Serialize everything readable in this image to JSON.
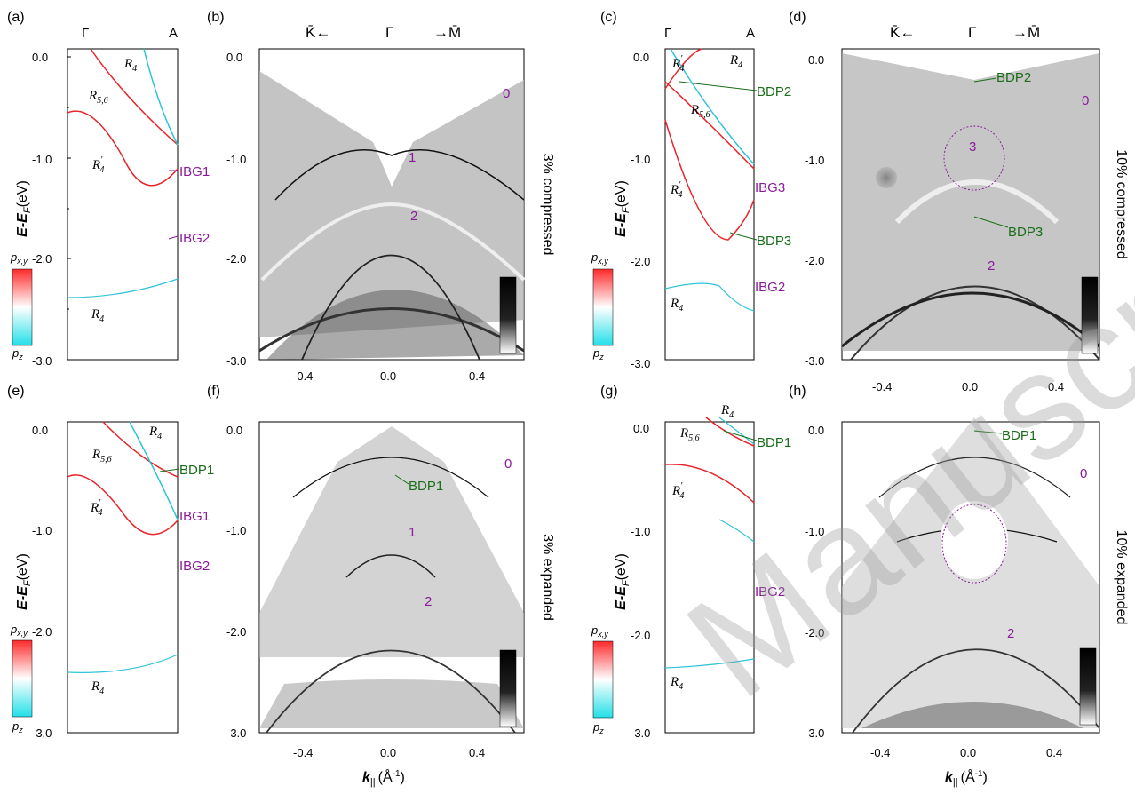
{
  "figure": {
    "panel_labels": [
      "(a)",
      "(b)",
      "(c)",
      "(d)",
      "(e)",
      "(f)",
      "(g)",
      "(h)"
    ],
    "bulk_axis": {
      "top_left": "Γ",
      "top_right": "A",
      "ylabel_main": "E-E",
      "ylabel_sub": "F",
      "ylabel_unit": "(eV)",
      "yticks": [
        "0.0",
        "-1.0",
        "-2.0",
        "-3.0"
      ]
    },
    "slab_axis": {
      "top_left": "K̄←",
      "top_center": "Γ̄",
      "top_right": "→M̄",
      "xticks": [
        "-0.4",
        "0.0",
        "0.4"
      ],
      "yticks": [
        "0.0",
        "-1.0",
        "-2.0",
        "-3.0"
      ],
      "xlabel_main": "k",
      "xlabel_sub": "||",
      "xlabel_unit": "(Å",
      "xlabel_exp": "-1",
      "xlabel_close": ")"
    },
    "colorbar": {
      "top_label": "p",
      "top_sub": "x,y",
      "bottom_label": "p",
      "bottom_sub": "z",
      "color_top": "#ff2a2a",
      "color_mid": "#ffffff",
      "color_bottom": "#22e0e8"
    },
    "band_labels": [
      "R4",
      "R5,6",
      "R′4",
      "R4"
    ],
    "strain_titles": [
      "3% compressed",
      "10% compressed",
      "3% expanded",
      "10% expanded"
    ],
    "annotations": {
      "a": [
        "IBG1",
        "IBG2"
      ],
      "b": [
        "0",
        "1",
        "2"
      ],
      "c": [
        "BDP2",
        "IBG3",
        "BDP3",
        "IBG2"
      ],
      "d": [
        "BDP2",
        "0",
        "3",
        "BDP3",
        "2"
      ],
      "e": [
        "BDP1",
        "IBG1",
        "IBG2"
      ],
      "f": [
        "0",
        "BDP1",
        "1",
        "2"
      ],
      "g": [
        "BDP1",
        "IBG2"
      ],
      "h": [
        "BDP1",
        "0",
        "2"
      ]
    },
    "colors": {
      "red_band": "#e8242a",
      "cyan_band": "#2ec4d6",
      "purple_label": "#8a1a9b",
      "green_label": "#1a6e1a"
    },
    "watermark": "Manuscript"
  }
}
